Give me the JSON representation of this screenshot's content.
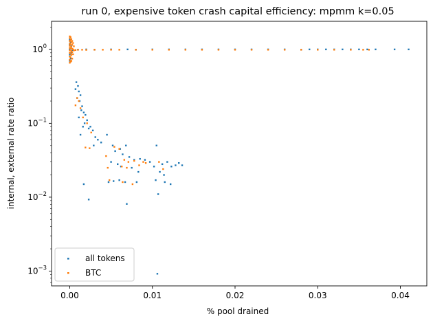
{
  "chart_data": {
    "type": "scatter",
    "title": "run 0, expensive token crash capital efficiency: mpmm k=0.05",
    "xlabel": "% pool drained",
    "ylabel": "internal, external rate ratio",
    "xlim": [
      -0.0022,
      0.0432
    ],
    "ylim": [
      0.00063,
      2.4
    ],
    "yscale": "log",
    "grid": false,
    "legend_position": "lower-left",
    "x_ticks": [
      {
        "value": 0.0,
        "label": "0.00"
      },
      {
        "value": 0.01,
        "label": "0.01"
      },
      {
        "value": 0.02,
        "label": "0.02"
      },
      {
        "value": 0.03,
        "label": "0.03"
      },
      {
        "value": 0.04,
        "label": "0.04"
      }
    ],
    "y_ticks": [
      {
        "value": 1,
        "label": "10^0",
        "base": "10",
        "exp": "0"
      },
      {
        "value": 0.1,
        "label": "10^-1",
        "base": "10",
        "exp": "−1"
      },
      {
        "value": 0.01,
        "label": "10^-2",
        "base": "10",
        "exp": "−2"
      },
      {
        "value": 0.001,
        "label": "10^-3",
        "base": "10",
        "exp": "−3"
      }
    ],
    "series": [
      {
        "name": "all tokens",
        "color": "#1f77b4",
        "points": [
          [
            0.0,
            0.7
          ],
          [
            0.0,
            0.85
          ],
          [
            0.0,
            1.0
          ],
          [
            0.0,
            1.15
          ],
          [
            0.0,
            1.35
          ],
          [
            0.0001,
            0.75
          ],
          [
            0.0001,
            1.25
          ],
          [
            0.0002,
            0.9
          ],
          [
            0.0002,
            1.1
          ],
          [
            0.0003,
            0.98
          ],
          [
            0.001,
            0.99
          ],
          [
            0.002,
            1.0
          ],
          [
            0.003,
            0.99
          ],
          [
            0.005,
            1.0
          ],
          [
            0.007,
            1.0
          ],
          [
            0.008,
            0.99
          ],
          [
            0.01,
            1.0
          ],
          [
            0.012,
            1.0
          ],
          [
            0.014,
            1.0
          ],
          [
            0.016,
            1.0
          ],
          [
            0.018,
            1.0
          ],
          [
            0.02,
            1.0
          ],
          [
            0.022,
            1.0
          ],
          [
            0.024,
            1.0
          ],
          [
            0.026,
            1.0
          ],
          [
            0.028,
            0.99
          ],
          [
            0.029,
            1.0
          ],
          [
            0.03,
            1.0
          ],
          [
            0.031,
            1.0
          ],
          [
            0.032,
            1.0
          ],
          [
            0.033,
            1.0
          ],
          [
            0.034,
            1.0
          ],
          [
            0.035,
            1.0
          ],
          [
            0.036,
            1.0
          ],
          [
            0.037,
            1.0
          ],
          [
            0.0393,
            1.0
          ],
          [
            0.041,
            1.0
          ],
          [
            0.0008,
            0.36
          ],
          [
            0.001,
            0.32
          ],
          [
            0.0007,
            0.29
          ],
          [
            0.0011,
            0.27
          ],
          [
            0.0013,
            0.24
          ],
          [
            0.0009,
            0.22
          ],
          [
            0.0012,
            0.2
          ],
          [
            0.0015,
            0.17
          ],
          [
            0.0014,
            0.15
          ],
          [
            0.0017,
            0.14
          ],
          [
            0.0019,
            0.13
          ],
          [
            0.0011,
            0.12
          ],
          [
            0.0021,
            0.11
          ],
          [
            0.0018,
            0.1
          ],
          [
            0.0016,
            0.09
          ],
          [
            0.0023,
            0.085
          ],
          [
            0.0025,
            0.09
          ],
          [
            0.0028,
            0.08
          ],
          [
            0.0013,
            0.07
          ],
          [
            0.0031,
            0.065
          ],
          [
            0.0045,
            0.07
          ],
          [
            0.0034,
            0.06
          ],
          [
            0.0038,
            0.055
          ],
          [
            0.0029,
            0.05
          ],
          [
            0.0052,
            0.05
          ],
          [
            0.0061,
            0.045
          ],
          [
            0.0068,
            0.05
          ],
          [
            0.0055,
            0.042
          ],
          [
            0.0064,
            0.038
          ],
          [
            0.0072,
            0.035
          ],
          [
            0.0078,
            0.032
          ],
          [
            0.0085,
            0.033
          ],
          [
            0.005,
            0.03
          ],
          [
            0.0058,
            0.028
          ],
          [
            0.0062,
            0.026
          ],
          [
            0.0075,
            0.025
          ],
          [
            0.0083,
            0.022
          ],
          [
            0.0091,
            0.032
          ],
          [
            0.0097,
            0.03
          ],
          [
            0.0105,
            0.05
          ],
          [
            0.0112,
            0.028
          ],
          [
            0.0118,
            0.03
          ],
          [
            0.0123,
            0.026
          ],
          [
            0.0128,
            0.027
          ],
          [
            0.0132,
            0.029
          ],
          [
            0.0136,
            0.027
          ],
          [
            0.0102,
            0.026
          ],
          [
            0.0109,
            0.022
          ],
          [
            0.0114,
            0.02
          ],
          [
            0.0047,
            0.016
          ],
          [
            0.0053,
            0.0165
          ],
          [
            0.006,
            0.017
          ],
          [
            0.0067,
            0.016
          ],
          [
            0.0081,
            0.016
          ],
          [
            0.0104,
            0.017
          ],
          [
            0.0115,
            0.016
          ],
          [
            0.0122,
            0.015
          ],
          [
            0.0017,
            0.015
          ],
          [
            0.0023,
            0.0093
          ],
          [
            0.0069,
            0.0081
          ],
          [
            0.0107,
            0.011
          ],
          [
            0.0106,
            0.00092
          ]
        ]
      },
      {
        "name": "BTC",
        "color": "#ff7f0e",
        "points": [
          [
            0.0,
            0.66
          ],
          [
            0.0,
            0.72
          ],
          [
            0.0,
            0.8
          ],
          [
            0.0,
            0.9
          ],
          [
            0.0,
            0.97
          ],
          [
            0.0,
            1.05
          ],
          [
            0.0,
            1.12
          ],
          [
            0.0,
            1.2
          ],
          [
            0.0,
            1.3
          ],
          [
            0.0,
            1.42
          ],
          [
            0.0,
            1.5
          ],
          [
            0.0001,
            0.68
          ],
          [
            0.0001,
            0.78
          ],
          [
            0.0001,
            0.88
          ],
          [
            0.0001,
            1.03
          ],
          [
            0.0001,
            1.18
          ],
          [
            0.0001,
            1.33
          ],
          [
            0.0001,
            1.47
          ],
          [
            0.0002,
            0.7
          ],
          [
            0.0002,
            0.84
          ],
          [
            0.0002,
            0.95
          ],
          [
            0.0002,
            1.08
          ],
          [
            0.0002,
            1.25
          ],
          [
            0.0002,
            1.38
          ],
          [
            0.0003,
            0.75
          ],
          [
            0.0003,
            0.92
          ],
          [
            0.0003,
            1.02
          ],
          [
            0.0003,
            1.15
          ],
          [
            0.0003,
            1.3
          ],
          [
            0.0004,
            0.86
          ],
          [
            0.0004,
            1.0
          ],
          [
            0.0004,
            1.22
          ],
          [
            0.0005,
            0.97
          ],
          [
            0.0005,
            1.1
          ],
          [
            0.0007,
            0.98
          ],
          [
            0.001,
            0.99
          ],
          [
            0.0015,
            0.99
          ],
          [
            0.002,
            0.985
          ],
          [
            0.003,
            0.99
          ],
          [
            0.004,
            0.99
          ],
          [
            0.005,
            0.99
          ],
          [
            0.006,
            0.99
          ],
          [
            0.008,
            0.99
          ],
          [
            0.01,
            0.99
          ],
          [
            0.012,
            0.99
          ],
          [
            0.014,
            0.99
          ],
          [
            0.016,
            0.99
          ],
          [
            0.018,
            0.99
          ],
          [
            0.02,
            0.99
          ],
          [
            0.022,
            0.99
          ],
          [
            0.024,
            0.99
          ],
          [
            0.026,
            0.99
          ],
          [
            0.028,
            0.99
          ],
          [
            0.03,
            0.99
          ],
          [
            0.032,
            0.99
          ],
          [
            0.034,
            0.99
          ],
          [
            0.0355,
            0.99
          ],
          [
            0.0362,
            0.99
          ],
          [
            0.0009,
            0.22
          ],
          [
            0.0011,
            0.2
          ],
          [
            0.0007,
            0.175
          ],
          [
            0.0013,
            0.16
          ],
          [
            0.0016,
            0.12
          ],
          [
            0.0021,
            0.1
          ],
          [
            0.0026,
            0.075
          ],
          [
            0.0019,
            0.047
          ],
          [
            0.0024,
            0.046
          ],
          [
            0.0054,
            0.048
          ],
          [
            0.006,
            0.045
          ],
          [
            0.0044,
            0.036
          ],
          [
            0.0066,
            0.032
          ],
          [
            0.0071,
            0.03
          ],
          [
            0.0078,
            0.031
          ],
          [
            0.0089,
            0.03
          ],
          [
            0.0092,
            0.029
          ],
          [
            0.0108,
            0.03
          ],
          [
            0.0046,
            0.025
          ],
          [
            0.0063,
            0.026
          ],
          [
            0.0069,
            0.025
          ],
          [
            0.0084,
            0.027
          ],
          [
            0.0113,
            0.024
          ],
          [
            0.0064,
            0.016
          ],
          [
            0.0076,
            0.015
          ],
          [
            0.0048,
            0.017
          ]
        ]
      }
    ]
  }
}
